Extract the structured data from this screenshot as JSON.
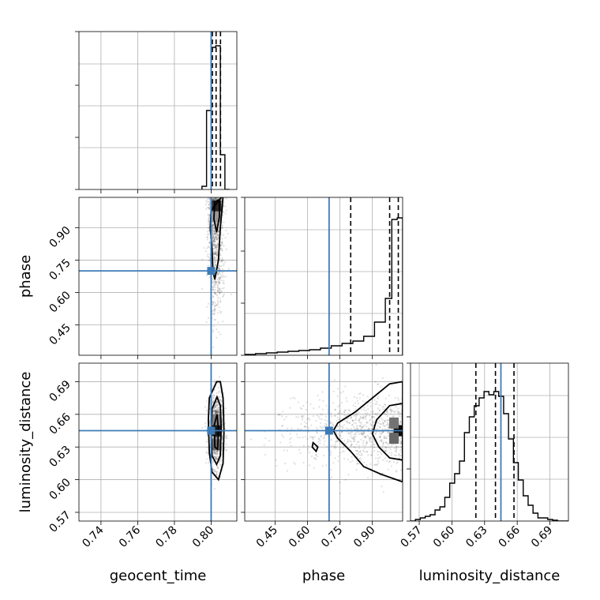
{
  "chart_data": {
    "type": "corner",
    "parameters": [
      "geocent_time",
      "phase",
      "luminosity_distance"
    ],
    "axis_labels": {
      "x": [
        "geocent_time",
        "phase",
        "luminosity_distance"
      ],
      "y": [
        "phase",
        "luminosity_distance"
      ]
    },
    "ranges": {
      "geocent_time": [
        0.728,
        0.814
      ],
      "phase": [
        0.31,
        1.04
      ],
      "luminosity_distance": [
        0.562,
        0.707
      ]
    },
    "ticks": {
      "geocent_time": [
        "0.74",
        "0.76",
        "0.78",
        "0.80"
      ],
      "phase": [
        "0.45",
        "0.60",
        "0.75",
        "0.90"
      ],
      "luminosity_distance": [
        "0.57",
        "0.60",
        "0.63",
        "0.66",
        "0.69"
      ]
    },
    "truths": {
      "geocent_time": 0.8,
      "phase": 0.7,
      "luminosity_distance": 0.645
    },
    "quantiles": {
      "geocent_time": [
        0.8007,
        0.8027,
        0.8051
      ],
      "phase": [
        0.8,
        0.98,
        1.02
      ],
      "luminosity_distance": [
        0.622,
        0.64,
        0.657
      ]
    },
    "histograms": {
      "geocent_time": {
        "edges": [
          0.795,
          0.7975,
          0.8,
          0.8025,
          0.805,
          0.8075,
          0.81
        ],
        "counts": [
          0.02,
          0.5,
          0.9,
          0.91,
          0.22,
          0.0
        ]
      },
      "phase": {
        "edges": [
          0.31,
          0.36,
          0.41,
          0.46,
          0.51,
          0.56,
          0.61,
          0.66,
          0.71,
          0.76,
          0.81,
          0.86,
          0.91,
          0.96,
          0.99,
          1.015,
          1.04
        ],
        "counts": [
          0.005,
          0.01,
          0.015,
          0.02,
          0.025,
          0.03,
          0.035,
          0.045,
          0.06,
          0.075,
          0.09,
          0.12,
          0.21,
          0.36,
          0.86,
          0.87
        ]
      },
      "luminosity_distance": {
        "edges": [
          0.562,
          0.5665,
          0.571,
          0.5755,
          0.58,
          0.5845,
          0.589,
          0.5935,
          0.598,
          0.6025,
          0.607,
          0.6115,
          0.616,
          0.6205,
          0.625,
          0.6295,
          0.634,
          0.6385,
          0.643,
          0.6475,
          0.652,
          0.6565,
          0.661,
          0.6655,
          0.67,
          0.6745,
          0.679,
          0.6835,
          0.688,
          0.6925,
          0.697,
          0.7015,
          0.707
        ],
        "counts": [
          0.0,
          0.01,
          0.02,
          0.03,
          0.04,
          0.07,
          0.09,
          0.15,
          0.24,
          0.3,
          0.38,
          0.56,
          0.66,
          0.73,
          0.78,
          0.82,
          0.8,
          0.82,
          0.79,
          0.68,
          0.52,
          0.37,
          0.26,
          0.16,
          0.1,
          0.05,
          0.02,
          0.02,
          0.01,
          0.005,
          0.0,
          0.0
        ]
      }
    },
    "contours": {
      "phase_vs_geocent_time": [
        [
          [
            0.8,
            0.98
          ],
          [
            0.7995,
            0.9
          ],
          [
            0.8005,
            0.8
          ],
          [
            0.801,
            0.7
          ],
          [
            0.802,
            0.66
          ],
          [
            0.804,
            0.75
          ],
          [
            0.805,
            0.9
          ],
          [
            0.806,
            0.99
          ],
          [
            0.8065,
            1.05
          ]
        ],
        [
          [
            0.802,
            1.02
          ],
          [
            0.8015,
            0.94
          ],
          [
            0.803,
            0.88
          ],
          [
            0.8045,
            0.95
          ],
          [
            0.8045,
            1.03
          ]
        ]
      ],
      "luminosity_distance_vs_geocent_time": [
        [
          [
            0.803,
            0.69
          ],
          [
            0.799,
            0.675
          ],
          [
            0.7985,
            0.655
          ],
          [
            0.799,
            0.625
          ],
          [
            0.8005,
            0.607
          ],
          [
            0.804,
            0.6
          ],
          [
            0.8065,
            0.615
          ],
          [
            0.807,
            0.645
          ],
          [
            0.8065,
            0.675
          ],
          [
            0.805,
            0.69
          ]
        ],
        [
          [
            0.8032,
            0.676
          ],
          [
            0.8005,
            0.665
          ],
          [
            0.8,
            0.645
          ],
          [
            0.8005,
            0.622
          ],
          [
            0.803,
            0.614
          ],
          [
            0.805,
            0.622
          ],
          [
            0.8055,
            0.648
          ],
          [
            0.805,
            0.668
          ]
        ],
        [
          [
            0.8032,
            0.66
          ],
          [
            0.8017,
            0.65
          ],
          [
            0.802,
            0.63
          ],
          [
            0.8035,
            0.628
          ],
          [
            0.804,
            0.645
          ]
        ]
      ],
      "luminosity_distance_vs_phase": [
        [
          [
            1.04,
            0.69
          ],
          [
            0.98,
            0.688
          ],
          [
            0.9,
            0.675
          ],
          [
            0.82,
            0.662
          ],
          [
            0.74,
            0.652
          ],
          [
            0.72,
            0.645
          ],
          [
            0.74,
            0.638
          ],
          [
            0.8,
            0.626
          ],
          [
            0.86,
            0.612
          ],
          [
            0.94,
            0.605
          ],
          [
            1.04,
            0.598
          ]
        ],
        [
          [
            1.04,
            0.67
          ],
          [
            0.98,
            0.668
          ],
          [
            0.92,
            0.655
          ],
          [
            0.9,
            0.642
          ],
          [
            0.93,
            0.63
          ],
          [
            0.98,
            0.62
          ],
          [
            1.04,
            0.618
          ]
        ],
        [
          [
            0.626,
            0.634
          ],
          [
            0.648,
            0.63
          ],
          [
            0.64,
            0.626
          ],
          [
            0.622,
            0.63
          ]
        ]
      ]
    },
    "density_cores": {
      "phase_vs_geocent_time": [
        {
          "x": 0.803,
          "y": 1.0,
          "level": 0.85
        },
        {
          "x": 0.803,
          "y": 0.95,
          "level": 0.4
        }
      ],
      "luminosity_distance_vs_geocent_time": [
        {
          "x": 0.803,
          "y": 0.645,
          "level": 0.9
        },
        {
          "x": 0.803,
          "y": 0.632,
          "level": 0.6
        },
        {
          "x": 0.8028,
          "y": 0.655,
          "level": 0.5
        }
      ],
      "luminosity_distance_vs_phase": [
        {
          "x": 1.02,
          "y": 0.645,
          "level": 0.95
        },
        {
          "x": 1.0,
          "y": 0.638,
          "level": 0.6
        },
        {
          "x": 1.0,
          "y": 0.652,
          "level": 0.55
        }
      ]
    },
    "point_clouds": {
      "phase_vs_geocent_time": {
        "x_mean": 0.8025,
        "x_sd": 0.0022,
        "y_min": 0.31,
        "y_max": 1.04,
        "y_mode": 1.0
      },
      "luminosity_distance_vs_geocent_time": {
        "x_mean": 0.8028,
        "x_sd": 0.002,
        "y_mean": 0.645,
        "y_sd": 0.017
      },
      "luminosity_distance_vs_phase": {
        "x_min": 0.31,
        "x_max": 1.04,
        "x_mode": 1.0,
        "y_mean": 0.645,
        "y_sd": 0.017
      }
    },
    "grid": true
  }
}
